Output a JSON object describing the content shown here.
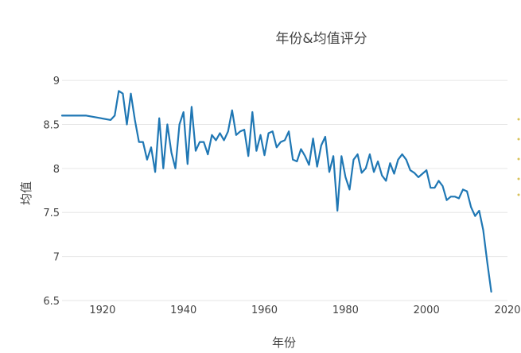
{
  "chart_data": {
    "type": "line",
    "title": "年份&均值评分",
    "xlabel": "年份",
    "ylabel": "均值",
    "xlim": [
      1910,
      2020
    ],
    "ylim": [
      6.5,
      9.1
    ],
    "xticks": [
      1920,
      1940,
      1960,
      1980,
      2000,
      2020
    ],
    "yticks": [
      6.5,
      7,
      7.5,
      8,
      8.5,
      9
    ],
    "grid": "horizontal",
    "series": [
      {
        "color": "#1f77b4",
        "x": [
          1910,
          1913,
          1916,
          1922,
          1923,
          1924,
          1925,
          1926,
          1927,
          1928,
          1929,
          1930,
          1931,
          1932,
          1933,
          1934,
          1935,
          1936,
          1937,
          1938,
          1939,
          1940,
          1941,
          1942,
          1943,
          1944,
          1945,
          1946,
          1947,
          1948,
          1949,
          1950,
          1951,
          1952,
          1953,
          1954,
          1955,
          1956,
          1957,
          1958,
          1959,
          1960,
          1961,
          1962,
          1963,
          1964,
          1965,
          1966,
          1967,
          1968,
          1969,
          1970,
          1971,
          1972,
          1973,
          1974,
          1975,
          1976,
          1977,
          1978,
          1979,
          1980,
          1981,
          1982,
          1983,
          1984,
          1985,
          1986,
          1987,
          1988,
          1989,
          1990,
          1991,
          1992,
          1993,
          1994,
          1995,
          1996,
          1997,
          1998,
          1999,
          2000,
          2001,
          2002,
          2003,
          2004,
          2005,
          2006,
          2007,
          2008,
          2009,
          2010,
          2011,
          2012,
          2013,
          2014,
          2015,
          2016
        ],
        "y": [
          8.6,
          8.6,
          8.6,
          8.55,
          8.6,
          8.88,
          8.85,
          8.5,
          8.85,
          8.55,
          8.3,
          8.3,
          8.1,
          8.24,
          7.96,
          8.57,
          8.0,
          8.5,
          8.18,
          8.0,
          8.5,
          8.64,
          8.05,
          8.7,
          8.2,
          8.3,
          8.3,
          8.16,
          8.38,
          8.32,
          8.4,
          8.32,
          8.42,
          8.66,
          8.38,
          8.42,
          8.44,
          8.14,
          8.64,
          8.2,
          8.38,
          8.15,
          8.4,
          8.42,
          8.24,
          8.3,
          8.32,
          8.42,
          8.1,
          8.08,
          8.22,
          8.14,
          8.04,
          8.34,
          8.02,
          8.26,
          8.36,
          7.96,
          8.14,
          7.52,
          8.14,
          7.9,
          7.76,
          8.1,
          8.16,
          7.95,
          8.0,
          8.16,
          7.96,
          8.08,
          7.92,
          7.86,
          8.06,
          7.94,
          8.1,
          8.16,
          8.1,
          7.98,
          7.95,
          7.9,
          7.94,
          7.98,
          7.78,
          7.78,
          7.86,
          7.8,
          7.64,
          7.68,
          7.68,
          7.66,
          7.76,
          7.74,
          7.56,
          7.46,
          7.52,
          7.3,
          6.94,
          6.6
        ]
      }
    ]
  }
}
